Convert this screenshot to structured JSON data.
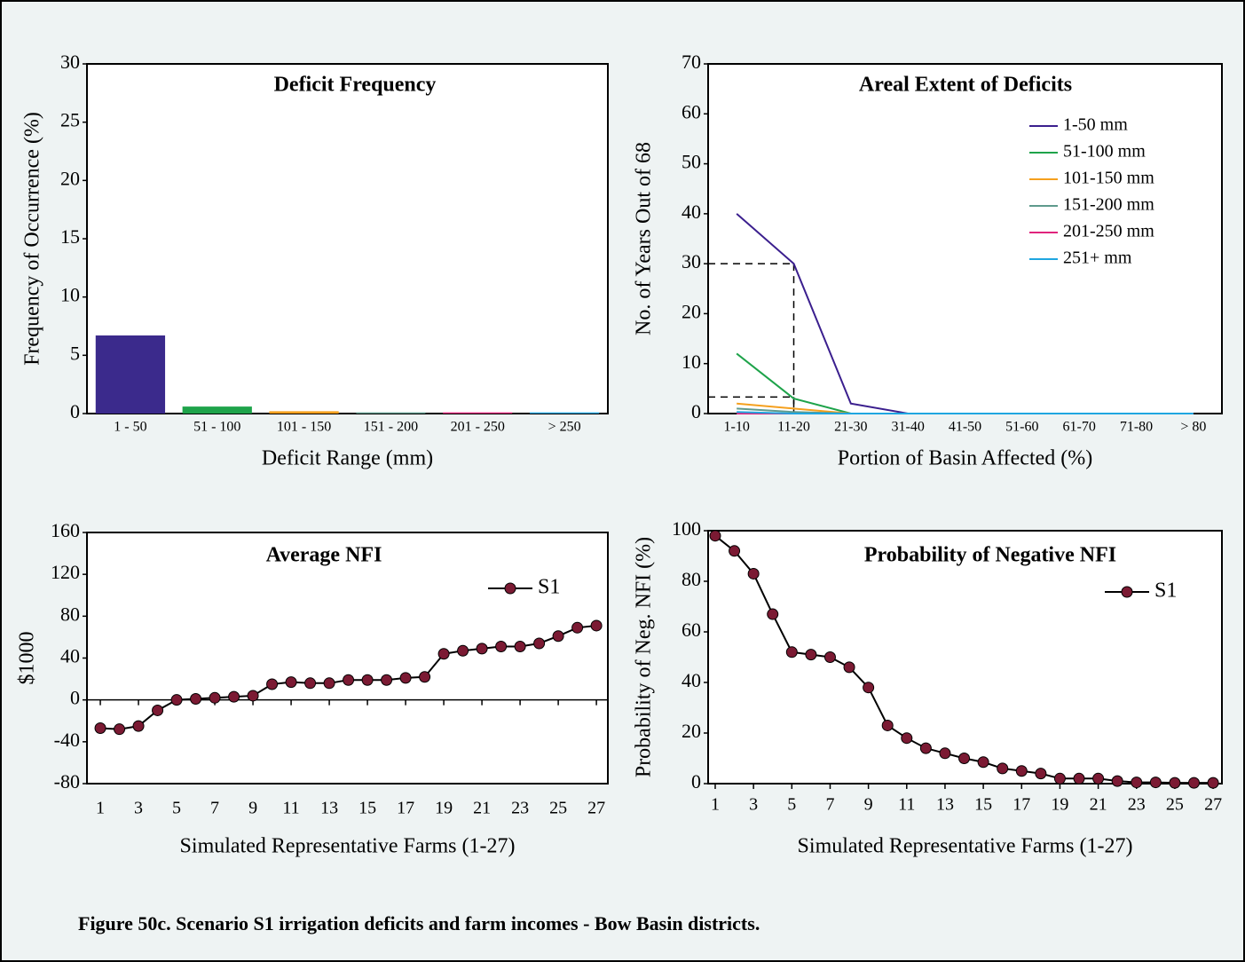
{
  "chart_data": [
    {
      "type": "bar",
      "title": "Deficit Frequency",
      "x_label": "Deficit Range (mm)",
      "y_label": "Frequency of Occurrence (%)",
      "categories": [
        "1 - 50",
        "51 - 100",
        "101 - 150",
        "151 - 200",
        "201 - 250",
        "> 250"
      ],
      "values": [
        6.7,
        0.6,
        0.2,
        0.1,
        0.1,
        0.1
      ],
      "colors": [
        "#3b2a8c",
        "#1ea34a",
        "#f5a01e",
        "#5f9a8c",
        "#e0247c",
        "#1fa6e0"
      ],
      "ylim": [
        0,
        30
      ],
      "yticks": [
        0,
        5,
        10,
        15,
        20,
        25,
        30
      ],
      "grid": false
    },
    {
      "type": "line",
      "title": "Areal Extent of Deficits",
      "x_label": "Portion of Basin Affected (%)",
      "y_label": "No. of Years Out of 68",
      "categories": [
        "1-10",
        "11-20",
        "21-30",
        "31-40",
        "41-50",
        "51-60",
        "61-70",
        "71-80",
        "> 80"
      ],
      "series": [
        {
          "name": "1-50 mm",
          "color": "#3b1f8e",
          "values": [
            40,
            30,
            2,
            0,
            0,
            0,
            0,
            0,
            0
          ]
        },
        {
          "name": "51-100 mm",
          "color": "#1ea34a",
          "values": [
            12,
            3,
            0,
            0,
            0,
            0,
            0,
            0,
            0
          ]
        },
        {
          "name": "101-150 mm",
          "color": "#f5a01e",
          "values": [
            2,
            1,
            0,
            0,
            0,
            0,
            0,
            0,
            0
          ]
        },
        {
          "name": "151-200 mm",
          "color": "#5f9a8c",
          "values": [
            1,
            0.3,
            0,
            0,
            0,
            0,
            0,
            0,
            0
          ]
        },
        {
          "name": "201-250 mm",
          "color": "#e0247c",
          "values": [
            0,
            0,
            0,
            0,
            0,
            0,
            0,
            0,
            0
          ]
        },
        {
          "name": "251+ mm",
          "color": "#1fa6e0",
          "values": [
            0.3,
            0,
            0,
            0,
            0,
            0,
            0,
            0,
            0
          ]
        }
      ],
      "guides": [
        {
          "x": "11-20",
          "y": 30
        },
        {
          "x": "11-20",
          "y": 3.3
        }
      ],
      "ylim": [
        0,
        70
      ],
      "yticks": [
        0,
        10,
        20,
        30,
        40,
        50,
        60,
        70
      ],
      "grid": false,
      "legend": "upper right"
    },
    {
      "type": "line",
      "title": "Average NFI",
      "x_label": "Simulated Representative Farms (1-27)",
      "y_label": "$1000",
      "x": [
        1,
        2,
        3,
        4,
        5,
        6,
        7,
        8,
        9,
        10,
        11,
        12,
        13,
        14,
        15,
        16,
        17,
        18,
        19,
        20,
        21,
        22,
        23,
        24,
        25,
        26,
        27
      ],
      "series": [
        {
          "name": "S1",
          "color": "#7b1a33",
          "values": [
            -27,
            -28,
            -25,
            -10,
            0,
            1,
            2,
            3,
            4,
            15,
            17,
            16,
            16,
            19,
            19,
            19,
            21,
            22,
            44,
            47,
            49,
            51,
            51,
            54,
            61,
            69,
            71
          ]
        }
      ],
      "line_color": "#000000",
      "xlim": [
        0.3,
        27.6
      ],
      "xticks": [
        1,
        3,
        5,
        7,
        9,
        11,
        13,
        15,
        17,
        19,
        21,
        23,
        25,
        27
      ],
      "ylim": [
        -80,
        160
      ],
      "yticks": [
        -80,
        -40,
        0,
        40,
        80,
        120,
        160
      ],
      "grid": false,
      "legend": "upper right"
    },
    {
      "type": "line",
      "title": "Probability of Negative NFI",
      "x_label": "Simulated Representative Farms (1-27)",
      "y_label": "Probability of Neg. NFI (%)",
      "x": [
        1,
        2,
        3,
        4,
        5,
        6,
        7,
        8,
        9,
        10,
        11,
        12,
        13,
        14,
        15,
        16,
        17,
        18,
        19,
        20,
        21,
        22,
        23,
        24,
        25,
        26,
        27
      ],
      "series": [
        {
          "name": "S1",
          "color": "#7b1a33",
          "values": [
            98,
            92,
            83,
            67,
            52,
            51,
            50,
            46,
            38,
            23,
            18,
            14,
            12,
            10,
            8.5,
            6,
            5,
            4,
            2,
            2,
            2,
            1,
            0.5,
            0.5,
            0.3,
            0.3,
            0.3
          ]
        }
      ],
      "line_color": "#000000",
      "xlim": [
        0.63,
        27.46
      ],
      "xticks": [
        1,
        3,
        5,
        7,
        9,
        11,
        13,
        15,
        17,
        19,
        21,
        23,
        25,
        27
      ],
      "ylim": [
        0,
        100
      ],
      "yticks": [
        0,
        20,
        40,
        60,
        80,
        100
      ],
      "grid": false,
      "legend": "upper right"
    }
  ],
  "caption": "Figure 50c. Scenario S1 irrigation deficits and farm incomes - Bow Basin districts."
}
